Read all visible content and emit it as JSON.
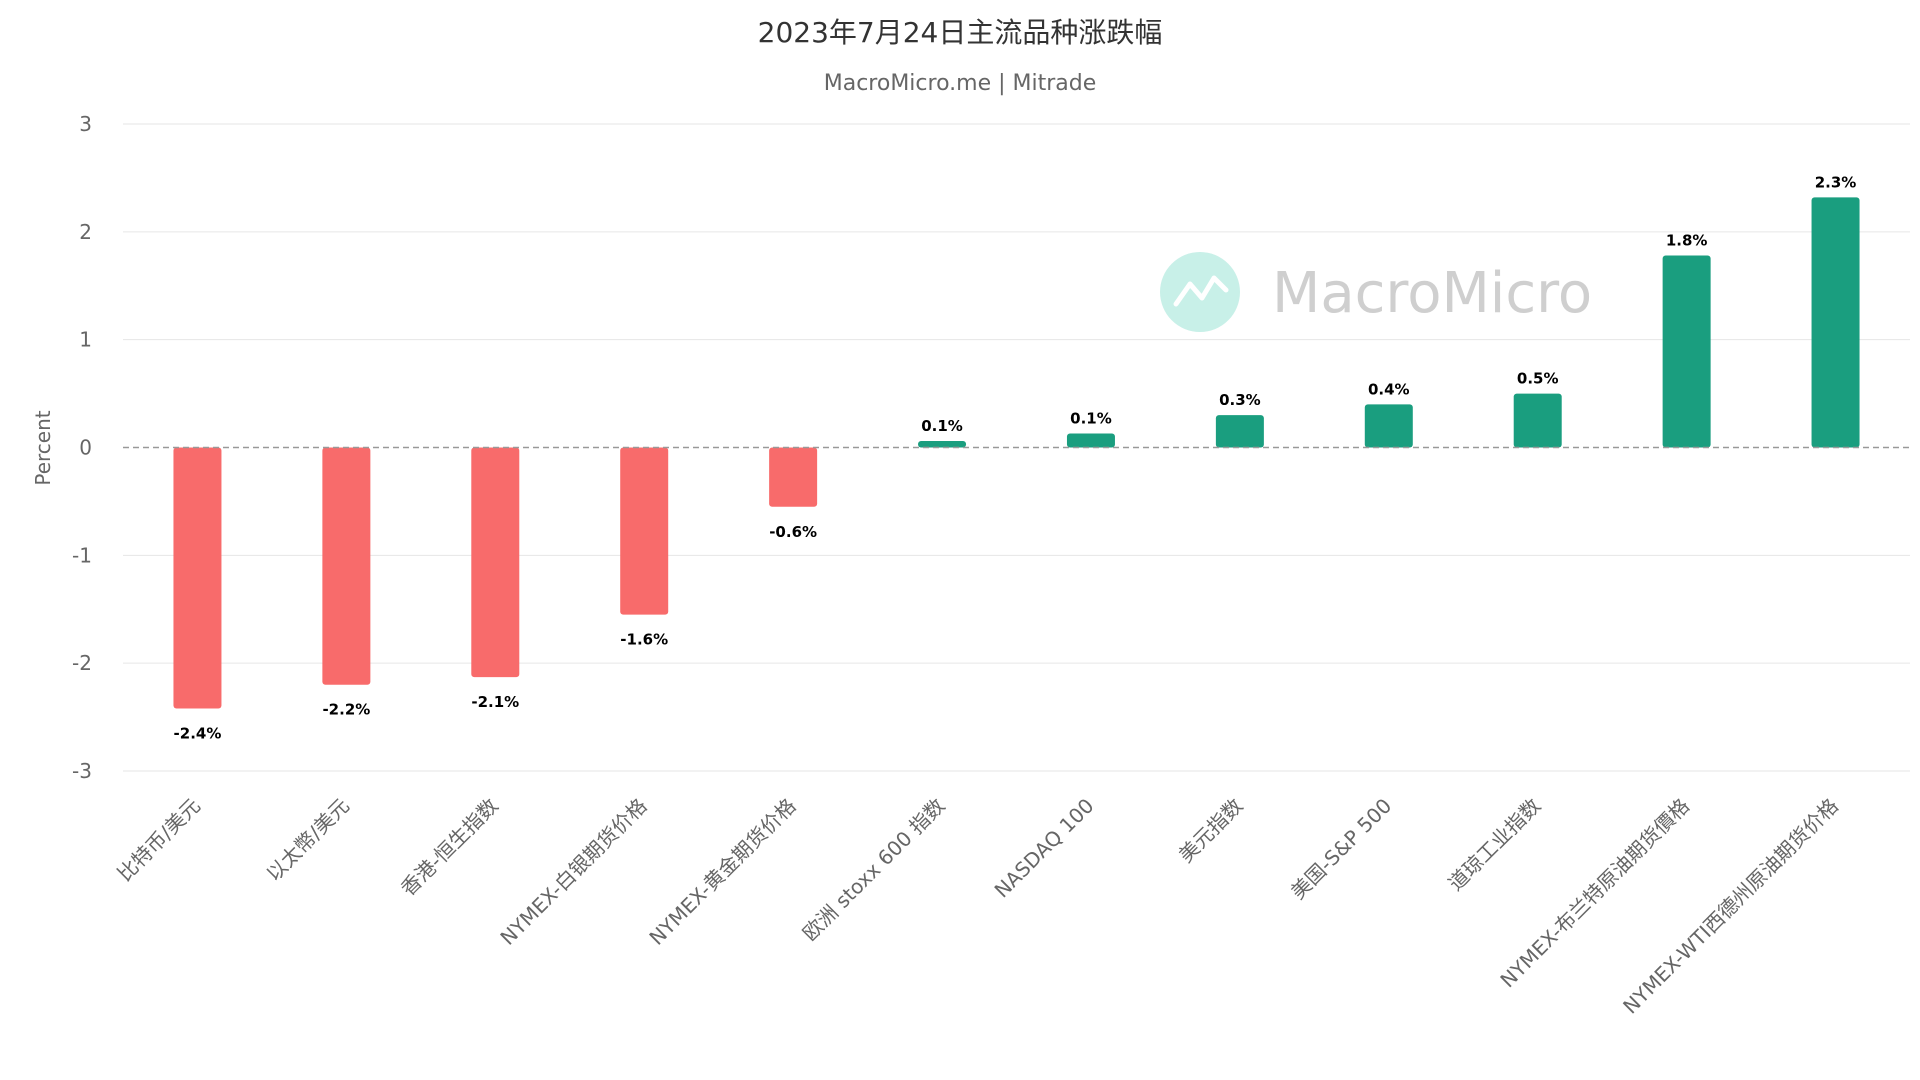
{
  "chart_data": {
    "type": "bar",
    "title": "2023年7月24日主流品种涨跌幅",
    "subtitle": "MacroMicro.me | Mitrade",
    "ylabel": "Percent",
    "xlabel": "",
    "ylim": [
      -3,
      3
    ],
    "yticks": [
      3,
      2,
      1,
      0,
      -1,
      -2,
      -3
    ],
    "grid": true,
    "legend": "none",
    "categories": [
      "比特币/美元",
      "以太幣/美元",
      "香港-恒生指数",
      "NYMEX-白银期货价格",
      "NYMEX-黄金期货价格",
      "欧洲 stoxx 600 指数",
      "NASDAQ 100",
      "美元指数",
      "美国-S&P 500",
      "道琼工业指数",
      "NYMEX-布兰特原油期货價格",
      "NYMEX-WTI西德州原油期货价格"
    ],
    "values": [
      -2.42,
      -2.2,
      -2.13,
      -1.55,
      -0.55,
      0.06,
      0.13,
      0.3,
      0.4,
      0.5,
      1.78,
      2.32
    ],
    "labels": [
      "-2.4%",
      "-2.2%",
      "-2.1%",
      "-1.6%",
      "-0.6%",
      "0.1%",
      "0.1%",
      "0.3%",
      "0.4%",
      "0.5%",
      "1.8%",
      "2.3%"
    ],
    "colors": {
      "negative": "#f86b6b",
      "positive": "#1a9e7f"
    }
  },
  "watermark": {
    "text": "MacroMicro",
    "icon": "chart-line-icon",
    "circle_color": "#c8f0e8",
    "icon_color": "#ffffff"
  }
}
